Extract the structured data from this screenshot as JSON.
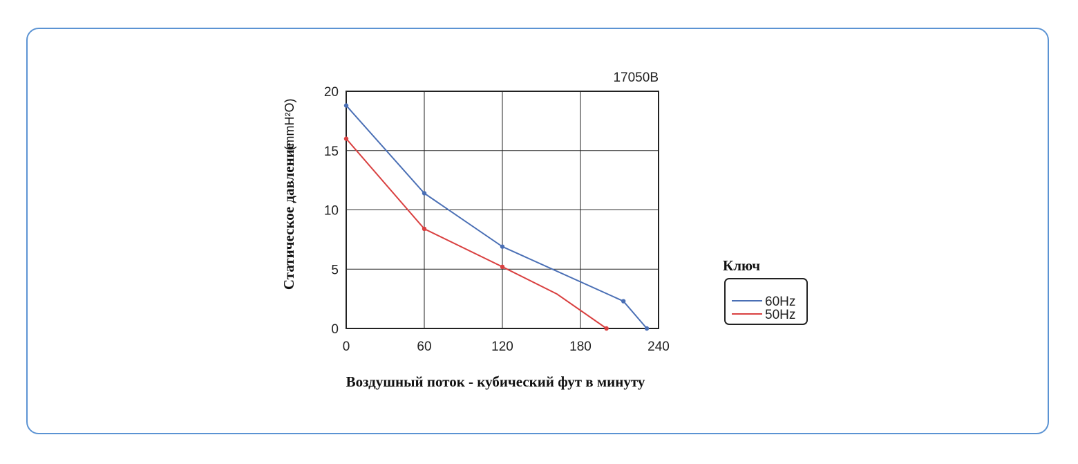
{
  "chart_data": {
    "type": "line",
    "title": "17050B",
    "xlabel": "Воздушный поток - кубический фут в минуту",
    "ylabel": "Статическое давление",
    "ylabel_unit": "(mmH²O)",
    "xlim": [
      0,
      240
    ],
    "ylim": [
      0,
      20
    ],
    "xticks": [
      "0",
      "60",
      "120",
      "180",
      "240"
    ],
    "yticks": [
      "0",
      "5",
      "10",
      "15",
      "20"
    ],
    "grid": true,
    "legend": {
      "title": "Ключ",
      "placement": "right"
    },
    "series": [
      {
        "name": "60Hz",
        "color": "#4a6fb5",
        "x": [
          0,
          60,
          120,
          213,
          231
        ],
        "y": [
          18.8,
          11.4,
          6.9,
          2.3,
          0
        ],
        "markers": [
          true,
          true,
          true,
          true,
          true
        ]
      },
      {
        "name": "50Hz",
        "color": "#d94040",
        "x": [
          0,
          60,
          120,
          162,
          200
        ],
        "y": [
          16.0,
          8.4,
          5.2,
          2.9,
          0
        ],
        "markers": [
          true,
          true,
          true,
          false,
          true
        ]
      }
    ]
  }
}
